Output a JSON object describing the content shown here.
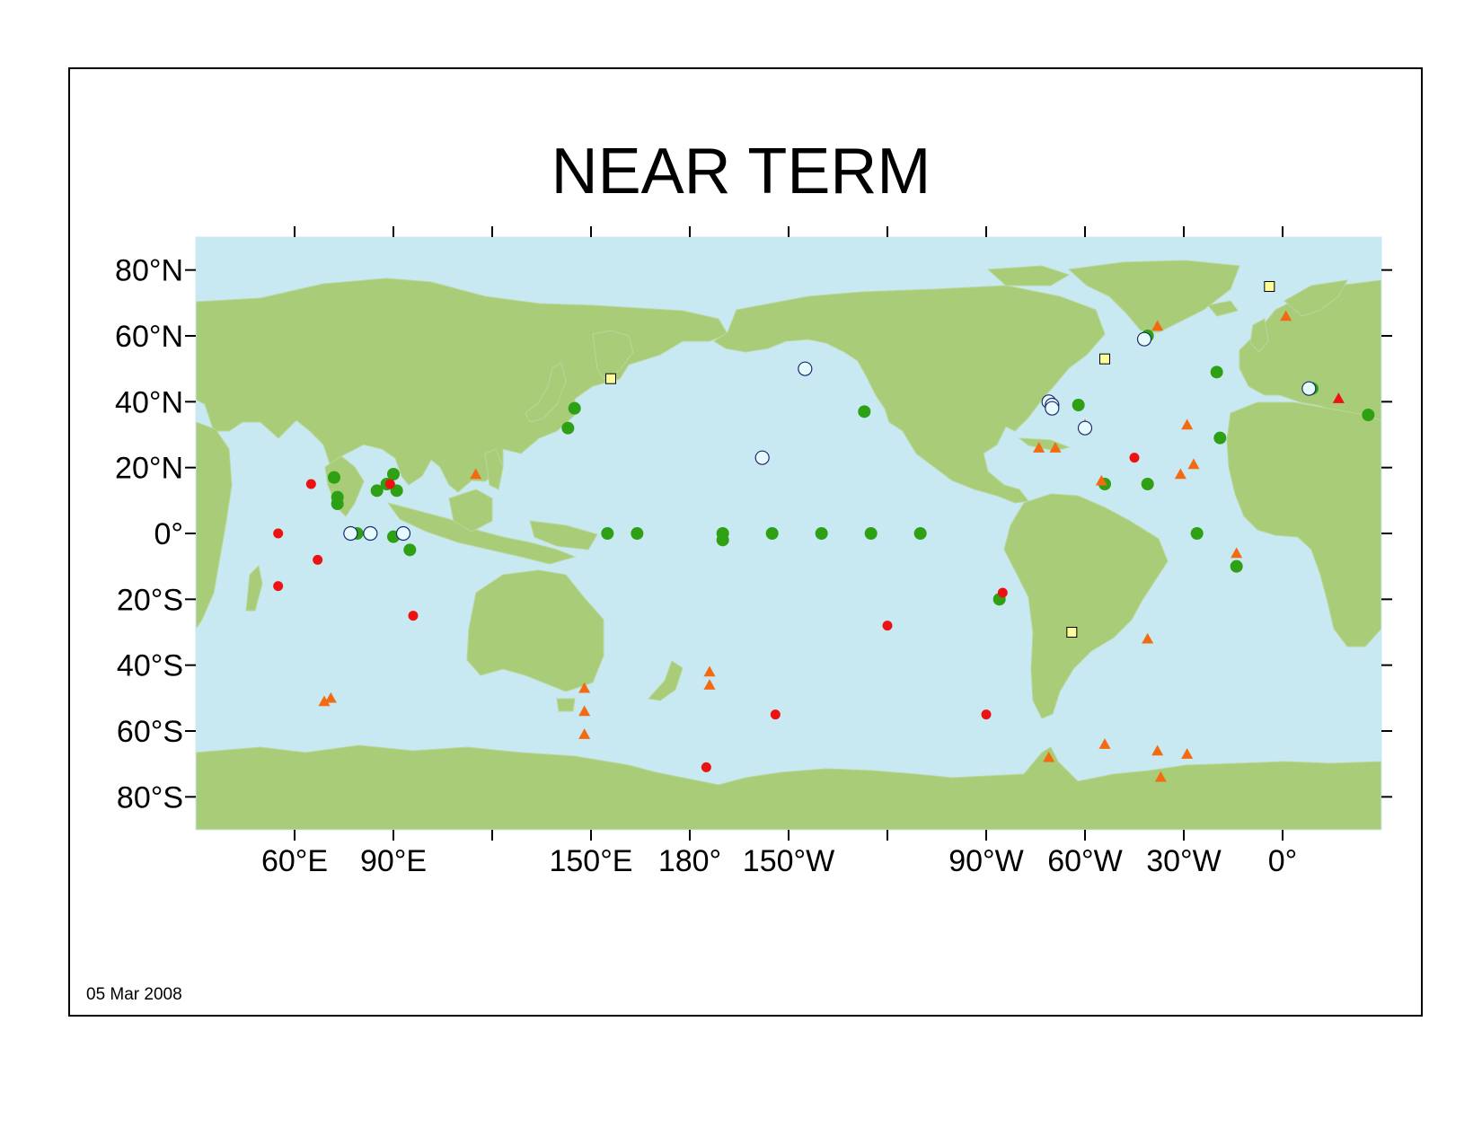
{
  "title": "NEAR TERM",
  "date": "05 Mar 2008",
  "colors": {
    "ocean": "#c8e8f2",
    "land": "#a8cc78",
    "green_station": "#2ea014",
    "red_station": "#ee1111",
    "orange_marker": "#f36a10",
    "yellow_square": "#fffc9a",
    "open_circle": "#e6fbff"
  },
  "axes": {
    "lat_labels": [
      "80°N",
      "60°N",
      "40°N",
      "20°N",
      "0°",
      "20°S",
      "40°S",
      "60°S",
      "80°S"
    ],
    "lat_values": [
      80,
      60,
      40,
      20,
      0,
      -20,
      -40,
      -60,
      -80
    ],
    "lon_labels": [
      {
        "text": "60°E",
        "lon": 60
      },
      {
        "text": "90°E",
        "lon": 90
      },
      {
        "text": "150°E",
        "lon": 150
      },
      {
        "text": "180°",
        "lon": 180
      },
      {
        "text": "150°W",
        "lon": 210
      },
      {
        "text": "90°W",
        "lon": 270
      },
      {
        "text": "60°W",
        "lon": 300
      },
      {
        "text": "30°W",
        "lon": 330
      },
      {
        "text": "0°",
        "lon": 360
      }
    ],
    "lon_ticks": [
      60,
      90,
      120,
      150,
      180,
      210,
      240,
      270,
      300,
      330,
      360
    ],
    "lon_range": [
      30,
      390
    ],
    "lat_range": [
      -90,
      90
    ]
  },
  "markers": {
    "green_circles": [
      [
        72,
        17
      ],
      [
        73,
        11
      ],
      [
        73,
        9
      ],
      [
        79,
        0
      ],
      [
        85,
        13
      ],
      [
        88,
        15
      ],
      [
        90,
        18
      ],
      [
        91,
        13
      ],
      [
        90,
        -1
      ],
      [
        95,
        -5
      ],
      [
        143,
        32
      ],
      [
        145,
        38
      ],
      [
        155,
        0
      ],
      [
        164,
        0
      ],
      [
        190,
        0
      ],
      [
        190,
        -2
      ],
      [
        202,
        23
      ],
      [
        205,
        0
      ],
      [
        220,
        0
      ],
      [
        235,
        0
      ],
      [
        250,
        0
      ],
      [
        233,
        37
      ],
      [
        274,
        -20
      ],
      [
        298,
        39
      ],
      [
        300,
        32
      ],
      [
        306,
        15
      ],
      [
        319,
        15
      ],
      [
        319,
        60
      ],
      [
        334,
        0
      ],
      [
        341,
        29
      ],
      [
        340,
        49
      ],
      [
        346,
        -10
      ],
      [
        369,
        44
      ],
      [
        386,
        36
      ]
    ],
    "red_circles": [
      [
        55,
        0
      ],
      [
        55,
        -16
      ],
      [
        65,
        15
      ],
      [
        67,
        -8
      ],
      [
        89,
        15
      ],
      [
        96,
        -25
      ],
      [
        185,
        -71
      ],
      [
        206,
        -55
      ],
      [
        240,
        -28
      ],
      [
        270,
        -55
      ],
      [
        275,
        -18
      ],
      [
        315,
        23
      ]
    ],
    "red_triangles": [
      [
        377,
        41
      ]
    ],
    "orange_triangles": [
      [
        69,
        -51
      ],
      [
        71,
        -50
      ],
      [
        115,
        18
      ],
      [
        148,
        -47
      ],
      [
        148,
        -54
      ],
      [
        148,
        -61
      ],
      [
        186,
        -42
      ],
      [
        186,
        -46
      ],
      [
        286,
        26
      ],
      [
        291,
        26
      ],
      [
        300,
        33
      ],
      [
        305,
        16
      ],
      [
        289,
        -68
      ],
      [
        306,
        -64
      ],
      [
        319,
        -32
      ],
      [
        322,
        63
      ],
      [
        322,
        -66
      ],
      [
        323,
        -74
      ],
      [
        331,
        33
      ],
      [
        329,
        18
      ],
      [
        333,
        21
      ],
      [
        331,
        -67
      ],
      [
        346,
        -6
      ],
      [
        361,
        66
      ]
    ],
    "yellow_squares": [
      [
        156,
        47
      ],
      [
        296,
        -30
      ],
      [
        306,
        53
      ],
      [
        356,
        75
      ]
    ],
    "open_circles": [
      [
        77,
        0
      ],
      [
        83,
        0
      ],
      [
        93,
        0
      ],
      [
        202,
        23
      ],
      [
        215,
        50
      ],
      [
        289,
        40
      ],
      [
        290,
        39
      ],
      [
        290,
        38
      ],
      [
        300,
        32
      ],
      [
        318,
        59
      ],
      [
        368,
        44
      ]
    ]
  }
}
